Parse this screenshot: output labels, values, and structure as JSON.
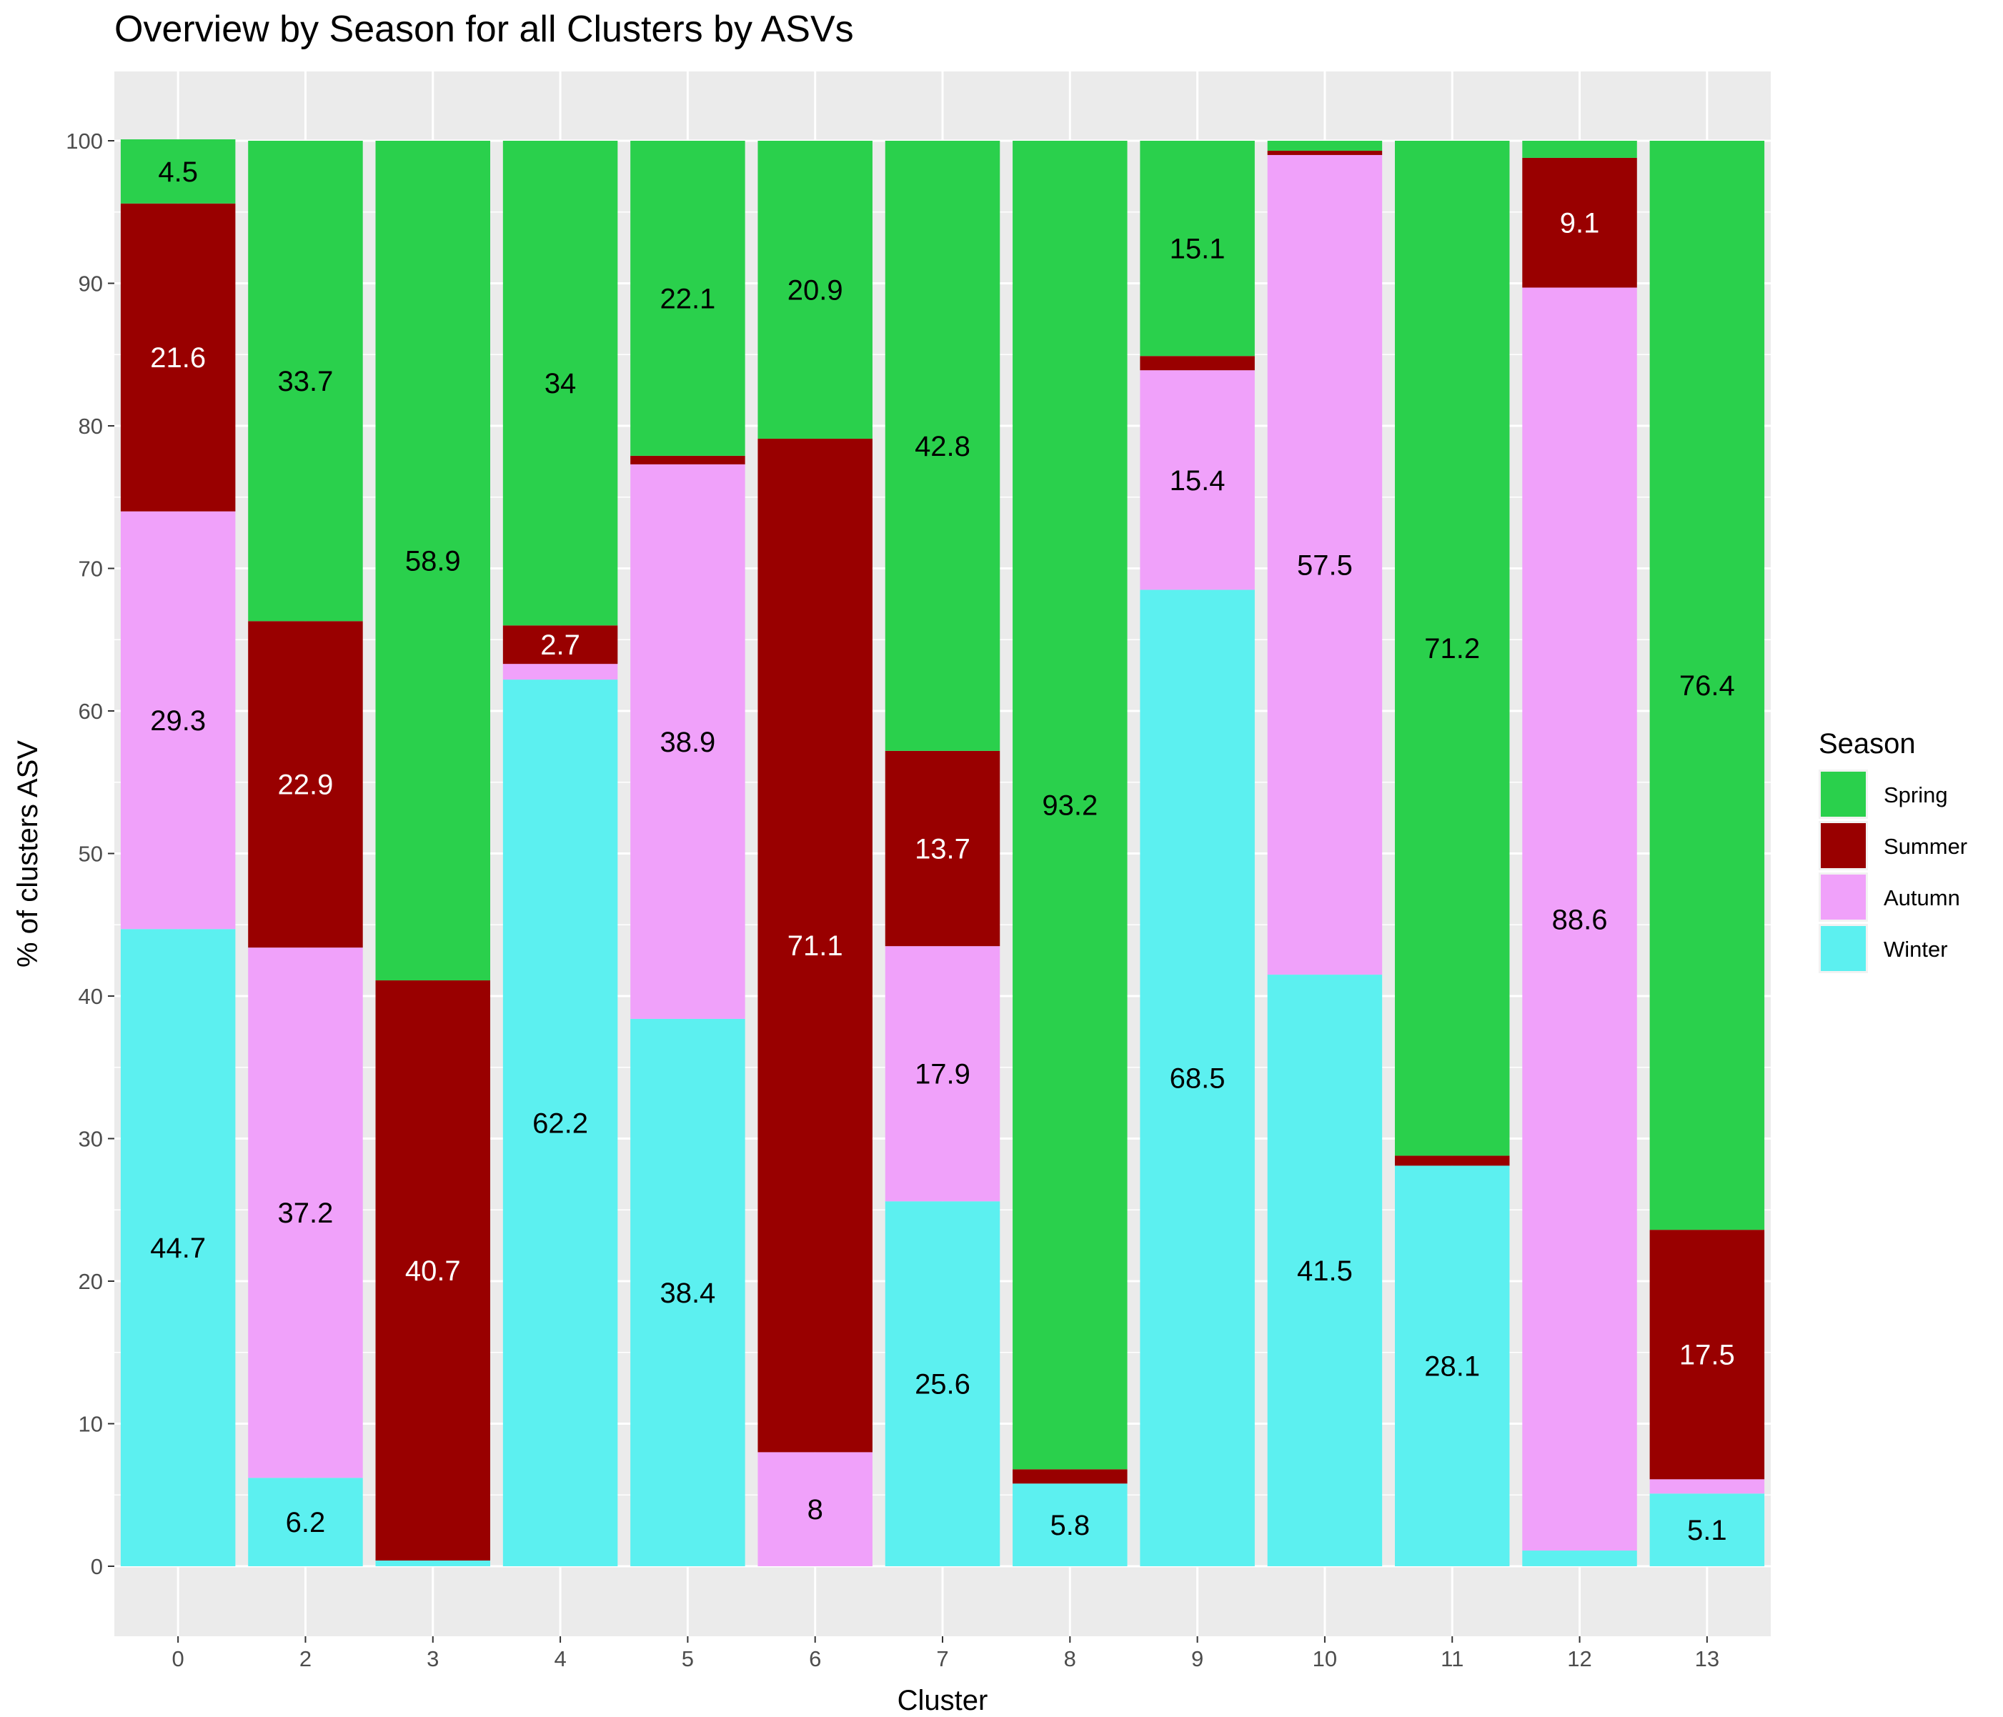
{
  "chart_data": {
    "type": "bar",
    "stacked": true,
    "title": "Overview by Season for all Clusters by ASVs",
    "xlabel": "Cluster",
    "ylabel": "% of clusters ASV",
    "ylim": [
      -5,
      105
    ],
    "yticks": [
      0,
      10,
      20,
      30,
      40,
      50,
      60,
      70,
      80,
      90,
      100
    ],
    "categories": [
      "0",
      "2",
      "3",
      "4",
      "5",
      "6",
      "7",
      "8",
      "9",
      "10",
      "11",
      "12",
      "13"
    ],
    "legend": {
      "title": "Season",
      "position": "right"
    },
    "series": [
      {
        "name": "Winter",
        "color": "#5cf0f0",
        "label_color": "#000000",
        "values": [
          44.7,
          6.2,
          0.4,
          62.2,
          38.4,
          0,
          25.6,
          5.8,
          68.5,
          41.5,
          28.1,
          1.1,
          5.1
        ],
        "labels": [
          "44.7",
          "6.2",
          "",
          "62.2",
          "38.4",
          "",
          "25.6",
          "5.8",
          "68.5",
          "41.5",
          "28.1",
          "",
          "5.1"
        ]
      },
      {
        "name": "Autumn",
        "color": "#f0a1fa",
        "label_color": "#000000",
        "values": [
          29.3,
          37.2,
          0,
          1.1,
          38.9,
          8.0,
          17.9,
          0,
          15.4,
          57.5,
          0,
          88.6,
          1.0
        ],
        "labels": [
          "29.3",
          "37.2",
          "",
          "",
          "38.9",
          "8",
          "17.9",
          "",
          "15.4",
          "57.5",
          "",
          "88.6",
          ""
        ]
      },
      {
        "name": "Summer",
        "color": "#990000",
        "label_color": "#ffffff",
        "values": [
          21.6,
          22.9,
          40.7,
          2.7,
          0.6,
          71.1,
          13.7,
          1.0,
          1.0,
          0.3,
          0.7,
          9.1,
          17.5
        ],
        "labels": [
          "21.6",
          "22.9",
          "40.7",
          "2.7",
          "",
          "71.1",
          "13.7",
          "",
          "",
          "",
          "",
          "9.1",
          "17.5"
        ]
      },
      {
        "name": "Spring",
        "color": "#2ad04c",
        "label_color": "#000000",
        "values": [
          4.5,
          33.7,
          58.9,
          34.0,
          22.1,
          20.9,
          42.8,
          93.2,
          15.1,
          0.7,
          71.2,
          1.2,
          76.4
        ],
        "labels": [
          "4.5",
          "33.7",
          "58.9",
          "34",
          "22.1",
          "20.9",
          "42.8",
          "93.2",
          "15.1",
          "",
          "71.2",
          "",
          "76.4"
        ]
      }
    ],
    "legend_order": [
      "Spring",
      "Summer",
      "Autumn",
      "Winter"
    ],
    "grid": true,
    "panel_background": "#ebebeb",
    "grid_color": "#ffffff"
  }
}
